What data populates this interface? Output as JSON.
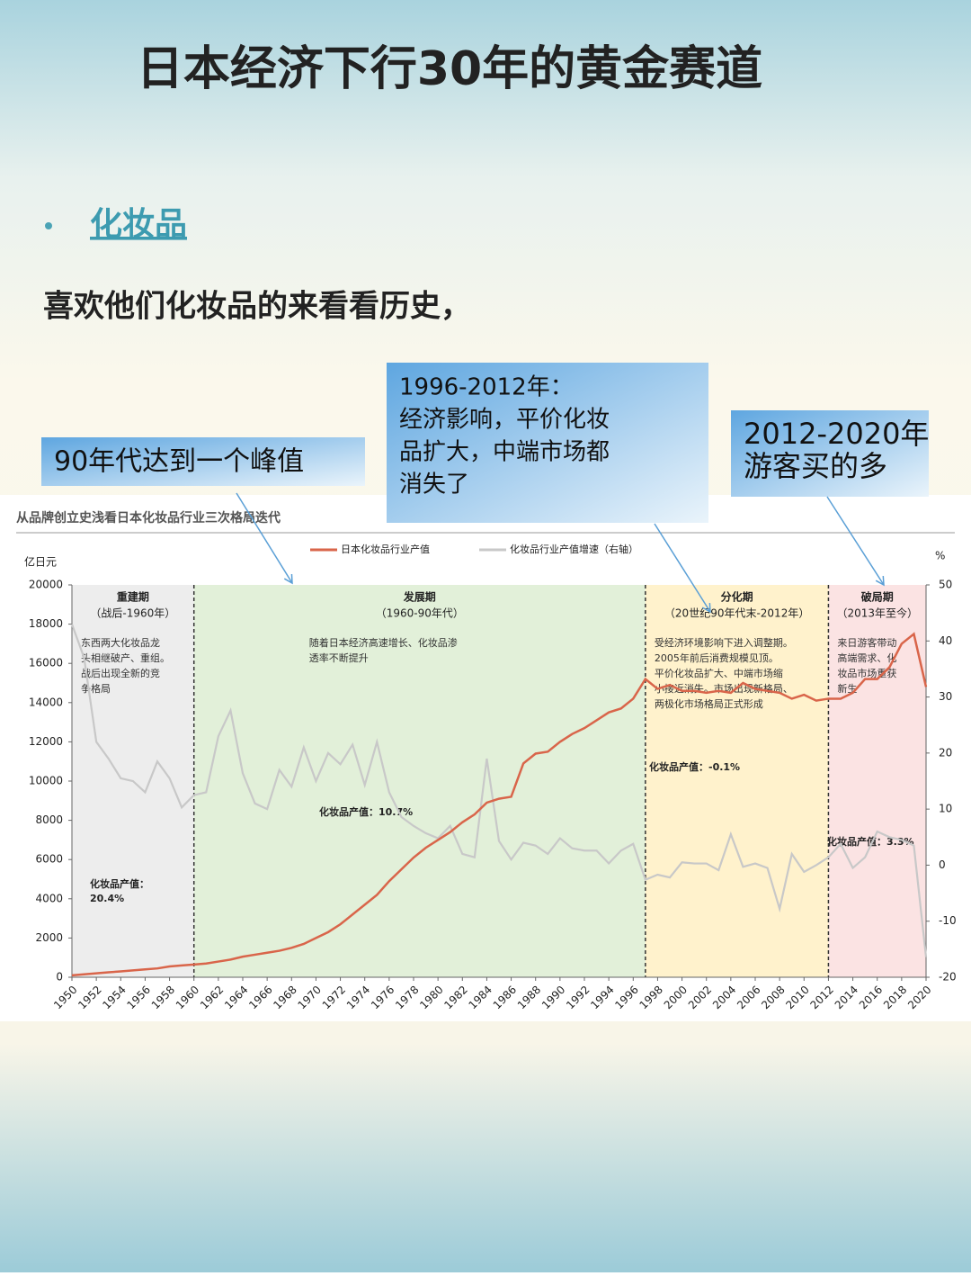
{
  "header": {
    "title": "日本经济下行30年的黄金赛道",
    "bullet": "化妆品",
    "intro": "喜欢他们化妆品的来看看历史，"
  },
  "callouts": [
    {
      "lines": [
        "90年代达到一个峰值"
      ]
    },
    {
      "lines": [
        "1996-2012年：",
        "经济影响，平价化妆",
        "品扩大，中端市场都",
        "消失了"
      ]
    },
    {
      "lines": [
        "2012-2020年",
        "游客买的多"
      ]
    }
  ],
  "chart_data": {
    "type": "line",
    "title": "从品牌创立史浅看日本化妆品行业三次格局迭代",
    "ylabel": "亿日元",
    "y2label": "%",
    "x": [
      1950,
      1951,
      1952,
      1953,
      1954,
      1955,
      1956,
      1957,
      1958,
      1959,
      1960,
      1961,
      1962,
      1963,
      1964,
      1965,
      1966,
      1967,
      1968,
      1969,
      1970,
      1971,
      1972,
      1973,
      1974,
      1975,
      1976,
      1977,
      1978,
      1979,
      1980,
      1981,
      1982,
      1983,
      1984,
      1985,
      1986,
      1987,
      1988,
      1989,
      1990,
      1991,
      1992,
      1993,
      1994,
      1995,
      1996,
      1997,
      1998,
      1999,
      2000,
      2001,
      2002,
      2003,
      2004,
      2005,
      2006,
      2007,
      2008,
      2009,
      2010,
      2011,
      2012,
      2013,
      2014,
      2015,
      2016,
      2017,
      2018,
      2019,
      2020
    ],
    "series": [
      {
        "name": "日本化妆品行业产值",
        "color": "#d9654a",
        "values": [
          100,
          150,
          200,
          250,
          300,
          350,
          400,
          450,
          550,
          600,
          650,
          700,
          800,
          900,
          1050,
          1150,
          1250,
          1350,
          1500,
          1700,
          2000,
          2300,
          2700,
          3200,
          3700,
          4200,
          4900,
          5500,
          6100,
          6600,
          7000,
          7400,
          7900,
          8300,
          8900,
          9100,
          9200,
          10900,
          11400,
          11500,
          12000,
          12400,
          12700,
          13100,
          13500,
          13700,
          14200,
          15200,
          14700,
          14900,
          14600,
          14600,
          14500,
          14600,
          14500,
          15000,
          14700,
          14600,
          14500,
          14200,
          14400,
          14100,
          14200,
          14200,
          14500,
          15200,
          15200,
          15800,
          17000,
          17500,
          14800
        ]
      },
      {
        "name": "化妆品行业产值增速（右轴）",
        "color": "#c8c8c8",
        "axis": "y2",
        "values": [
          43,
          37,
          22,
          19,
          15.5,
          15,
          13,
          18.5,
          15.5,
          10.3,
          12.5,
          13,
          23,
          27.6,
          16.4,
          11,
          10,
          17,
          14,
          21,
          15,
          20,
          18,
          21.5,
          14.3,
          22,
          13,
          8.6,
          7,
          5.7,
          4.8,
          7,
          2,
          1.4,
          19,
          4.3,
          1,
          4,
          3.5,
          2,
          4.8,
          3,
          2.6,
          2.6,
          0.3,
          2.6,
          3.8,
          -2.6,
          -1.7,
          -2.2,
          0.5,
          0.3,
          0.3,
          -0.9,
          5.5,
          -0.3,
          0.3,
          -0.5,
          -7.8,
          2,
          -1.2,
          0,
          1.4,
          3.8,
          -0.5,
          1.4,
          6,
          5,
          4.5,
          3.5,
          -16.4
        ]
      }
    ],
    "xlim": [
      1950,
      2020
    ],
    "xticks": [
      1950,
      1952,
      1954,
      1956,
      1958,
      1960,
      1962,
      1964,
      1966,
      1968,
      1970,
      1972,
      1974,
      1976,
      1978,
      1980,
      1982,
      1984,
      1986,
      1988,
      1990,
      1992,
      1994,
      1996,
      1998,
      2000,
      2002,
      2004,
      2006,
      2008,
      2010,
      2012,
      2014,
      2016,
      2018,
      2020
    ],
    "ylim": [
      0,
      20000
    ],
    "yticks": [
      0,
      2000,
      4000,
      6000,
      8000,
      10000,
      12000,
      14000,
      16000,
      18000,
      20000
    ],
    "y2lim": [
      -20,
      50
    ],
    "y2ticks": [
      -20,
      -10,
      0,
      10,
      20,
      30,
      40,
      50
    ],
    "periods": [
      {
        "name": "重建期",
        "range": "（战后-1960年）",
        "span": [
          1950,
          1960
        ],
        "color": "#ededed",
        "note": [
          "东西两大化妆品龙",
          "头相继破产、重组。",
          "战后出现全新的竞",
          "争格局"
        ],
        "growth": [
          "化妆品产值：",
          "20.4%"
        ]
      },
      {
        "name": "发展期",
        "range": "（1960-90年代）",
        "span": [
          1960,
          1997
        ],
        "color": "#e2f0d9",
        "note": [
          "随着日本经济高速增长、化妆品渗",
          "透率不断提升"
        ],
        "growth": [
          "化妆品产值：10.7%"
        ]
      },
      {
        "name": "分化期",
        "range": "（20世纪90年代末-2012年）",
        "span": [
          1997,
          2012
        ],
        "color": "#fff2cc",
        "note": [
          "受经济环境影响下进入调整期。",
          "2005年前后消费规模见顶。",
          "平价化妆品扩大、中端市场缩",
          "小接近消失。市场出现新格局、",
          "两极化市场格局正式形成"
        ],
        "growth": [
          "化妆品产值：-0.1%"
        ]
      },
      {
        "name": "破局期",
        "range": "（2013年至今）",
        "span": [
          2012,
          2020
        ],
        "color": "#fbe3e3",
        "note": [
          "来日游客带动",
          "高端需求、化",
          "妆品市场重获",
          "新生"
        ],
        "growth": [
          "化妆品产值：3.3%"
        ]
      }
    ]
  }
}
